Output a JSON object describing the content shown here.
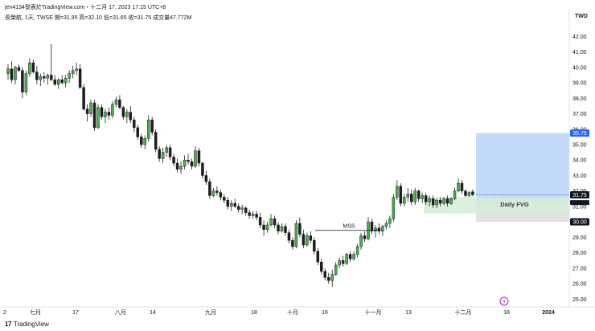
{
  "header": {
    "publisher_line": "jen4134發表於TradingView.com・十二月 17, 2023 17:15 UTC+8",
    "symbol_line": "長榮航, 1天, TWSE",
    "ohlc": {
      "open_label": "開",
      "open": "=31.95",
      "high_label": "高",
      "high": "=32.10",
      "low_label": "低",
      "low": "=31.65",
      "close_label": "收",
      "close": "=31.75",
      "volume_label": "成交量",
      "volume": "47.772M"
    },
    "currency": "TWD"
  },
  "footer": {
    "logo": "17",
    "brand": "TradingView"
  },
  "colors": {
    "up": "#4caf50",
    "down": "#1e1e1e",
    "blue_zone": "#bbd3f7",
    "fvg_zone": "#d7ecd7",
    "grey_zone": "#e2e2e2",
    "blue_tag": "#2962ff",
    "dark_tag": "#131722"
  },
  "chart_data": {
    "type": "candlestick",
    "y_axis": {
      "ticks": [
        "42.00",
        "41.00",
        "40.00",
        "39.00",
        "38.00",
        "37.00",
        "36.00",
        "35.00",
        "34.00",
        "33.00",
        "32.00",
        "31.00",
        "30.00",
        "29.00",
        "28.00",
        "27.00",
        "26.00",
        "25.00"
      ],
      "ylim": [
        24.6,
        42.8
      ]
    },
    "x_axis": {
      "ticks": [
        "2",
        "七月",
        "17",
        "八月",
        "14",
        "九月",
        "18",
        "十月",
        "16",
        "十一月",
        "13",
        "十二月",
        "18",
        "2024"
      ]
    },
    "price_tags": [
      {
        "label": "35.75",
        "value": 35.75,
        "style": "blue"
      },
      {
        "label": "31.75",
        "value": 31.75,
        "style": "dark"
      },
      {
        "label": "30.00",
        "value": 30.0,
        "style": "dark"
      }
    ],
    "annotations": [
      {
        "text": "MSS",
        "value": 29.45
      },
      {
        "text": "Daily FVG",
        "value": 31.1
      }
    ],
    "zones": {
      "blue": {
        "top": 35.75,
        "bottom": 31.1
      },
      "fvg": {
        "top": 31.6,
        "bottom": 30.55
      },
      "grey": {
        "top": 31.1,
        "bottom": 30.0
      }
    },
    "candles": [
      [
        39.6,
        40.2,
        39.2,
        39.9
      ],
      [
        39.9,
        40.4,
        39.0,
        39.2
      ],
      [
        39.2,
        40.1,
        38.9,
        40.0
      ],
      [
        40.0,
        40.2,
        39.7,
        39.8
      ],
      [
        39.8,
        40.0,
        38.0,
        38.4
      ],
      [
        38.4,
        39.8,
        38.2,
        39.6
      ],
      [
        39.6,
        40.6,
        39.4,
        40.3
      ],
      [
        40.3,
        40.5,
        39.6,
        39.7
      ],
      [
        39.7,
        40.1,
        38.9,
        39.2
      ],
      [
        39.2,
        39.6,
        38.8,
        39.4
      ],
      [
        39.4,
        39.7,
        39.0,
        39.3
      ],
      [
        39.3,
        39.6,
        38.9,
        39.5
      ],
      [
        39.5,
        41.5,
        39.1,
        39.2
      ],
      [
        39.2,
        39.5,
        38.8,
        38.9
      ],
      [
        38.9,
        39.3,
        38.6,
        39.2
      ],
      [
        39.2,
        39.5,
        38.9,
        39.0
      ],
      [
        39.0,
        39.5,
        38.7,
        39.3
      ],
      [
        39.3,
        39.8,
        39.0,
        39.6
      ],
      [
        39.6,
        40.1,
        39.3,
        39.8
      ],
      [
        39.8,
        40.3,
        39.5,
        39.9
      ],
      [
        39.9,
        40.2,
        38.6,
        38.7
      ],
      [
        38.7,
        38.9,
        37.2,
        37.3
      ],
      [
        37.3,
        37.6,
        36.5,
        37.0
      ],
      [
        37.0,
        37.9,
        36.8,
        37.7
      ],
      [
        37.7,
        37.9,
        35.9,
        36.1
      ],
      [
        36.1,
        37.6,
        36.0,
        37.4
      ],
      [
        37.4,
        37.6,
        36.6,
        36.8
      ],
      [
        36.8,
        37.3,
        36.4,
        37.1
      ],
      [
        37.1,
        37.4,
        36.6,
        36.9
      ],
      [
        36.9,
        37.8,
        36.7,
        37.6
      ],
      [
        37.6,
        38.1,
        37.4,
        37.9
      ],
      [
        37.9,
        38.2,
        37.3,
        37.4
      ],
      [
        37.4,
        37.5,
        36.6,
        36.8
      ],
      [
        36.8,
        37.3,
        36.4,
        37.1
      ],
      [
        37.1,
        37.5,
        36.4,
        36.6
      ],
      [
        36.6,
        36.8,
        35.8,
        36.1
      ],
      [
        36.1,
        36.3,
        35.3,
        35.5
      ],
      [
        35.5,
        35.7,
        34.8,
        35.0
      ],
      [
        35.0,
        35.6,
        34.7,
        35.4
      ],
      [
        35.4,
        36.9,
        35.2,
        36.6
      ],
      [
        36.6,
        36.8,
        35.6,
        35.8
      ],
      [
        35.8,
        36.0,
        34.5,
        34.7
      ],
      [
        34.7,
        34.9,
        33.9,
        34.1
      ],
      [
        34.1,
        34.8,
        33.8,
        34.5
      ],
      [
        34.5,
        35.0,
        34.2,
        34.8
      ],
      [
        34.8,
        35.0,
        34.0,
        34.2
      ],
      [
        34.2,
        34.4,
        33.6,
        33.8
      ],
      [
        33.8,
        34.1,
        33.2,
        33.4
      ],
      [
        33.4,
        33.9,
        33.1,
        33.6
      ],
      [
        33.6,
        34.3,
        33.4,
        34.0
      ],
      [
        34.0,
        34.4,
        33.7,
        33.9
      ],
      [
        33.9,
        34.1,
        33.4,
        33.6
      ],
      [
        33.6,
        34.9,
        33.5,
        34.6
      ],
      [
        34.6,
        34.8,
        33.6,
        33.8
      ],
      [
        33.8,
        33.9,
        32.8,
        33.0
      ],
      [
        33.0,
        33.3,
        32.4,
        32.6
      ],
      [
        32.6,
        32.8,
        31.5,
        31.7
      ],
      [
        31.7,
        32.2,
        31.6,
        32.0
      ],
      [
        32.0,
        32.3,
        31.7,
        31.9
      ],
      [
        31.9,
        32.1,
        31.4,
        31.6
      ],
      [
        31.6,
        31.8,
        31.2,
        31.4
      ],
      [
        31.4,
        31.6,
        30.8,
        31.0
      ],
      [
        31.0,
        31.4,
        30.7,
        31.2
      ],
      [
        31.2,
        31.5,
        30.9,
        31.0
      ],
      [
        31.0,
        31.2,
        30.6,
        30.8
      ],
      [
        30.8,
        31.1,
        30.5,
        30.9
      ],
      [
        30.9,
        31.0,
        30.4,
        30.6
      ],
      [
        30.6,
        30.8,
        30.2,
        30.4
      ],
      [
        30.4,
        30.7,
        30.2,
        30.5
      ],
      [
        30.5,
        30.7,
        30.1,
        30.3
      ],
      [
        30.3,
        30.6,
        29.6,
        29.8
      ],
      [
        29.8,
        30.1,
        29.1,
        29.5
      ],
      [
        29.5,
        30.0,
        29.3,
        29.8
      ],
      [
        29.8,
        30.5,
        29.7,
        30.2
      ],
      [
        30.2,
        30.4,
        29.6,
        29.8
      ],
      [
        29.8,
        30.0,
        29.2,
        29.4
      ],
      [
        29.4,
        29.9,
        29.3,
        29.7
      ],
      [
        29.7,
        29.9,
        29.1,
        29.3
      ],
      [
        29.3,
        29.5,
        28.6,
        28.8
      ],
      [
        28.8,
        29.0,
        28.2,
        28.4
      ],
      [
        28.4,
        30.1,
        28.3,
        29.9
      ],
      [
        29.9,
        30.3,
        29.0,
        29.2
      ],
      [
        29.2,
        29.5,
        28.3,
        28.5
      ],
      [
        28.5,
        29.3,
        28.4,
        29.1
      ],
      [
        29.1,
        29.4,
        28.6,
        28.8
      ],
      [
        28.8,
        29.0,
        27.9,
        28.1
      ],
      [
        28.1,
        28.3,
        27.2,
        27.4
      ],
      [
        27.4,
        27.6,
        26.6,
        26.8
      ],
      [
        26.8,
        27.0,
        26.2,
        26.4
      ],
      [
        26.4,
        26.7,
        26.0,
        26.2
      ],
      [
        26.2,
        26.9,
        25.8,
        26.6
      ],
      [
        26.6,
        27.4,
        26.5,
        27.2
      ],
      [
        27.2,
        27.7,
        27.0,
        27.5
      ],
      [
        27.5,
        27.8,
        27.1,
        27.3
      ],
      [
        27.3,
        28.0,
        27.2,
        27.9
      ],
      [
        27.9,
        28.1,
        27.4,
        27.6
      ],
      [
        27.6,
        28.1,
        27.5,
        27.9
      ],
      [
        27.9,
        28.6,
        27.7,
        28.4
      ],
      [
        28.4,
        29.3,
        28.2,
        29.1
      ],
      [
        29.1,
        29.4,
        28.7,
        28.9
      ],
      [
        28.9,
        30.3,
        28.8,
        30.0
      ],
      [
        30.0,
        30.2,
        29.2,
        29.4
      ],
      [
        29.4,
        29.8,
        29.0,
        29.6
      ],
      [
        29.6,
        29.9,
        29.2,
        29.4
      ],
      [
        29.4,
        29.8,
        29.1,
        29.7
      ],
      [
        29.7,
        30.1,
        29.5,
        29.9
      ],
      [
        29.9,
        30.4,
        29.6,
        30.2
      ],
      [
        30.2,
        31.8,
        30.0,
        31.6
      ],
      [
        31.6,
        32.7,
        31.4,
        32.3
      ],
      [
        32.3,
        32.5,
        31.0,
        31.2
      ],
      [
        31.2,
        31.8,
        31.0,
        31.6
      ],
      [
        31.6,
        32.2,
        31.3,
        31.8
      ],
      [
        31.8,
        32.1,
        31.1,
        31.3
      ],
      [
        31.3,
        32.2,
        31.1,
        32.0
      ],
      [
        32.0,
        32.1,
        31.3,
        31.5
      ],
      [
        31.5,
        31.9,
        31.2,
        31.7
      ],
      [
        31.7,
        31.9,
        31.1,
        31.3
      ],
      [
        31.3,
        31.7,
        31.0,
        31.5
      ],
      [
        31.5,
        31.7,
        30.9,
        31.1
      ],
      [
        31.1,
        31.5,
        30.9,
        31.4
      ],
      [
        31.4,
        31.6,
        31.0,
        31.2
      ],
      [
        31.2,
        31.6,
        31.1,
        31.5
      ],
      [
        31.5,
        31.7,
        31.0,
        31.2
      ],
      [
        31.2,
        31.6,
        31.1,
        31.5
      ],
      [
        31.5,
        32.2,
        31.4,
        32.0
      ],
      [
        32.0,
        32.8,
        31.9,
        32.5
      ],
      [
        32.5,
        32.7,
        31.8,
        32.0
      ],
      [
        32.0,
        32.1,
        31.6,
        31.7
      ],
      [
        31.7,
        32.0,
        31.6,
        31.9
      ],
      [
        31.95,
        32.1,
        31.65,
        31.75
      ]
    ]
  }
}
